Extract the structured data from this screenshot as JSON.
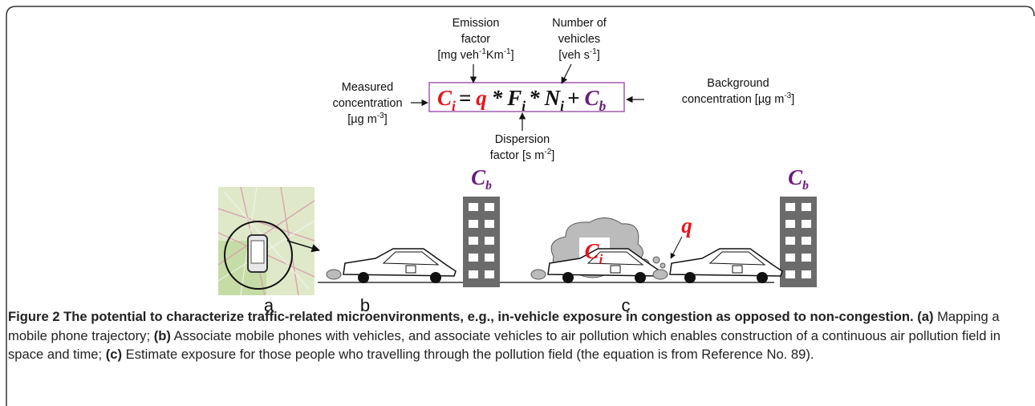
{
  "equation": {
    "tokens": [
      {
        "text": "C",
        "sub": "i",
        "color": "#e8141c"
      },
      {
        "text": "="
      },
      {
        "text": "q",
        "color": "#e8141c"
      },
      {
        "text": "*"
      },
      {
        "text": "F",
        "sub": "i"
      },
      {
        "text": "*"
      },
      {
        "text": "N",
        "sub": "i"
      },
      {
        "text": "+"
      },
      {
        "text": "C",
        "sub": "b",
        "color": "#6a1b7a"
      }
    ]
  },
  "annotations": {
    "emission": {
      "lines": [
        [
          {
            "text": "Emission"
          }
        ],
        [
          {
            "text": "factor"
          }
        ],
        [
          {
            "text": "[mg veh"
          },
          {
            "sup": "-1"
          },
          {
            "text": "Km"
          },
          {
            "sup": "-1"
          },
          {
            "text": "]"
          }
        ]
      ]
    },
    "vehicles": {
      "lines": [
        [
          {
            "text": "Number of"
          }
        ],
        [
          {
            "text": "vehicles"
          }
        ],
        [
          {
            "text": "[veh s"
          },
          {
            "sup": "-1"
          },
          {
            "text": "]"
          }
        ]
      ]
    },
    "measured": {
      "lines": [
        [
          {
            "text": "Measured"
          }
        ],
        [
          {
            "text": "concentration"
          }
        ],
        [
          {
            "text": "[µg m"
          },
          {
            "sup": "-3"
          },
          {
            "text": "]"
          }
        ]
      ]
    },
    "background": {
      "lines": [
        [
          {
            "text": "Background"
          }
        ],
        [
          {
            "text": "concentration [µg m"
          },
          {
            "sup": "-3"
          },
          {
            "text": "]"
          }
        ]
      ]
    },
    "dispersion": {
      "lines": [
        [
          {
            "text": "Dispersion"
          }
        ],
        [
          {
            "text": "factor [s m"
          },
          {
            "sup": "-2"
          },
          {
            "text": "]"
          }
        ]
      ]
    }
  },
  "scene_labels": {
    "building_1": {
      "text": "C",
      "sub": "b",
      "color": "#6a1b7a"
    },
    "building_2": {
      "text": "C",
      "sub": "b",
      "color": "#6a1b7a"
    },
    "cloud": {
      "text": "C",
      "sub": "i",
      "color": "#e8141c"
    },
    "source": {
      "text": "q",
      "color": "#e8141c"
    }
  },
  "panel_labels": [
    "a",
    "b",
    "c"
  ],
  "caption": [
    {
      "text": "Figure 2 The potential to characterize traffic-related microenvironments, e.g., in-vehicle exposure in congestion as opposed to non-congestion.",
      "bold": true
    },
    {
      "text": " (a)",
      "bold": true
    },
    {
      "text": " Mapping a mobile phone trajectory;"
    },
    {
      "text": " (b)",
      "bold": true
    },
    {
      "text": " Associate mobile phones with vehicles, and associate vehicles to air pollution which enables construction of a continuous air pollution field in space and time;"
    },
    {
      "text": " (c)",
      "bold": true
    },
    {
      "text": " Estimate exposure for those people who travelling through the pollution field (the equation is from Reference No. 89)."
    }
  ]
}
